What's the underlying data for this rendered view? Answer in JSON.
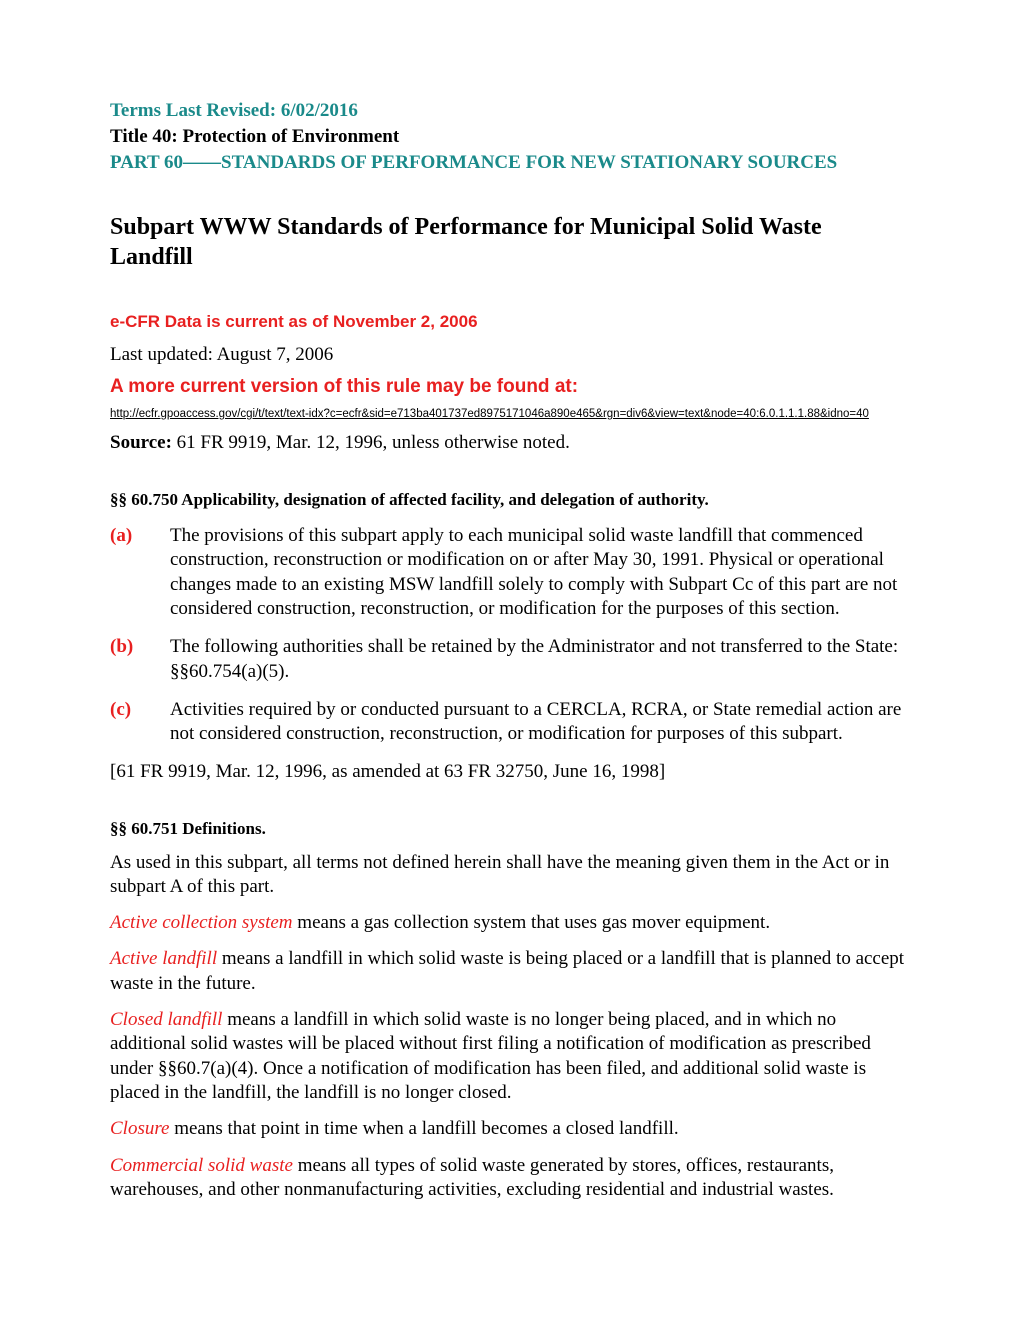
{
  "colors": {
    "teal": "#1a8a8a",
    "red": "#e82020",
    "black": "#000000",
    "background": "#ffffff"
  },
  "typography": {
    "serif_family": "Times New Roman",
    "sans_family": "Arial",
    "body_size_pt": 14,
    "heading_size_pt": 18,
    "small_sans_pt": 9
  },
  "header": {
    "terms_revised": "Terms Last Revised: 6/02/2016",
    "title_line": "Title 40: Protection of Environment",
    "part_line": "PART 60——STANDARDS OF PERFORMANCE FOR NEW STATIONARY SOURCES"
  },
  "subpart_heading": "Subpart WWW  Standards of Performance for Municipal Solid Waste Landfill",
  "ecfr_current": "e-CFR Data is current as of November 2, 2006",
  "last_updated": "Last updated: August 7, 2006",
  "more_current_label": "A more current version of this rule may be found at:",
  "url": "http://ecfr.gpoaccess.gov/cgi/t/text/text-idx?c=ecfr&sid=e713ba401737ed8975171046a890e465&rgn=div6&view=text&node=40:6.0.1.1.1.88&idno=40",
  "source_label": "Source:",
  "source_text": " 61 FR 9919, Mar. 12, 1996, unless otherwise noted.",
  "section_60750": {
    "heading": "§§ 60.750 Applicability, designation of affected facility, and delegation of authority.",
    "items": [
      {
        "label": "(a)",
        "text": "The provisions of this subpart apply to each municipal solid waste landfill that commenced construction, reconstruction or modification on or after May 30, 1991. Physical or operational changes made to an existing MSW landfill solely to comply with Subpart Cc of this part are not considered construction, reconstruction, or modification for the purposes of this section."
      },
      {
        "label": "(b)",
        "text": "The following authorities shall be retained by the Administrator and not transferred to the State: §§60.754(a)(5)."
      },
      {
        "label": "(c)",
        "text": "Activities required by or conducted pursuant to a CERCLA, RCRA, or State remedial action are not considered construction, reconstruction, or modification for purposes of this subpart."
      }
    ],
    "citation": "[61 FR 9919, Mar. 12, 1996, as amended at 63 FR 32750, June 16, 1998]"
  },
  "section_60751": {
    "heading": "§§ 60.751 Definitions.",
    "intro": "As used in this subpart, all terms not defined herein shall have the meaning given them in the Act or in subpart A of this part.",
    "definitions": [
      {
        "term": "Active collection system",
        "body": " means a gas collection system that uses gas mover equipment."
      },
      {
        "term": "Active landfill",
        "body": " means a landfill in which solid waste is being placed or a landfill that is planned to accept waste in the future."
      },
      {
        "term": "Closed landfill",
        "body": " means a landfill in which solid waste is no longer being placed, and in which no additional solid wastes will be placed without first filing a notification of modification as prescribed under §§60.7(a)(4). Once a notification of modification has been filed, and additional solid waste is placed in the landfill, the landfill is no longer closed."
      },
      {
        "term": "Closure",
        "body": " means that point in time when a landfill becomes a closed landfill."
      },
      {
        "term": "Commercial solid waste",
        "body": " means all types of solid waste generated by stores, offices, restaurants, warehouses, and other nonmanufacturing activities, excluding residential and industrial wastes."
      }
    ]
  }
}
